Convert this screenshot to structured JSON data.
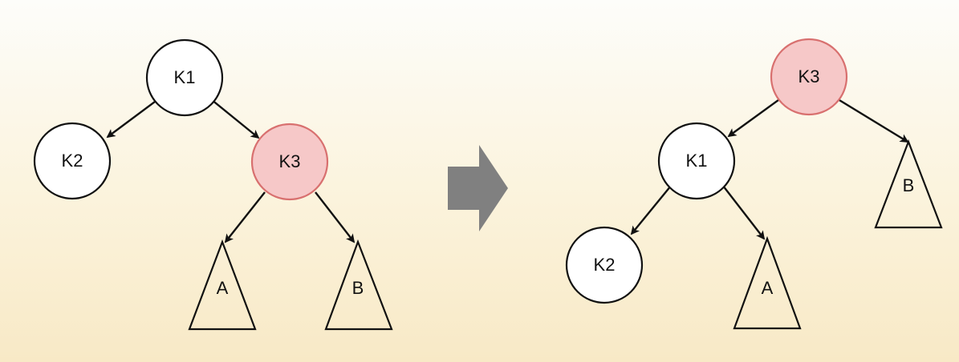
{
  "colors": {
    "default_node": "#ffffff",
    "highlight_node": "#f6c8c8",
    "highlight_stroke": "#d8706f",
    "arrow": "#808080"
  },
  "before": {
    "k1": "K1",
    "k2": "K2",
    "k3": "K3",
    "a": "A",
    "b": "B"
  },
  "after": {
    "k3": "K3",
    "k1": "K1",
    "k2": "K2",
    "a": "A",
    "b": "B"
  },
  "transition_icon": "right-arrow-icon"
}
